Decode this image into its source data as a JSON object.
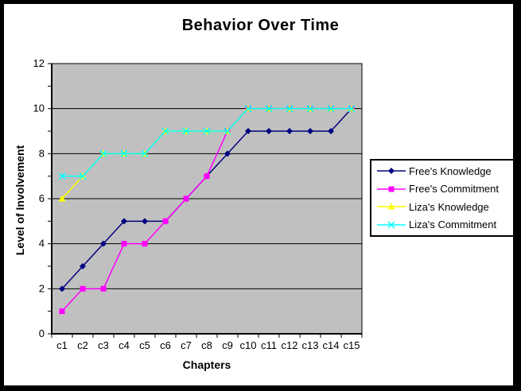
{
  "chart_data": {
    "type": "line",
    "title": "Behavior Over Time",
    "xlabel": "Chapters",
    "ylabel": "Level of Involvement",
    "ylim": [
      0,
      12
    ],
    "y_major_ticks": [
      0,
      2,
      4,
      6,
      8,
      10,
      12
    ],
    "grid": true,
    "legend_position": "right",
    "categories": [
      "c1",
      "c2",
      "c3",
      "c4",
      "c5",
      "c6",
      "c7",
      "c8",
      "c9",
      "c10",
      "c11",
      "c12",
      "c13",
      "c14",
      "c15"
    ],
    "series": [
      {
        "name": "Free's Knowledge",
        "color": "#000080",
        "marker": "diamond",
        "values": [
          2,
          3,
          4,
          5,
          5,
          5,
          6,
          7,
          8,
          9,
          9,
          9,
          9,
          9,
          10
        ]
      },
      {
        "name": "Free's Commitment",
        "color": "#FF00FF",
        "marker": "square",
        "values": [
          1,
          2,
          2,
          4,
          4,
          5,
          6,
          7,
          9,
          10,
          10,
          10,
          10,
          10,
          10
        ]
      },
      {
        "name": "Liza's Knowledge",
        "color": "#FFFF00",
        "marker": "triangle",
        "values": [
          6,
          7,
          8,
          8,
          8,
          9,
          9,
          9,
          9,
          10,
          10,
          10,
          10,
          10,
          10
        ]
      },
      {
        "name": "Liza's Commitment",
        "color": "#00FFFF",
        "marker": "x",
        "values": [
          7,
          7,
          8,
          8,
          8,
          9,
          9,
          9,
          9,
          10,
          10,
          10,
          10,
          10,
          10
        ]
      }
    ],
    "colors": {
      "plot_bg": "#C0C0C0",
      "page_bg": "#FFFFFF",
      "frame": "#000000",
      "gridline": "#000000",
      "text": "#000000"
    }
  }
}
